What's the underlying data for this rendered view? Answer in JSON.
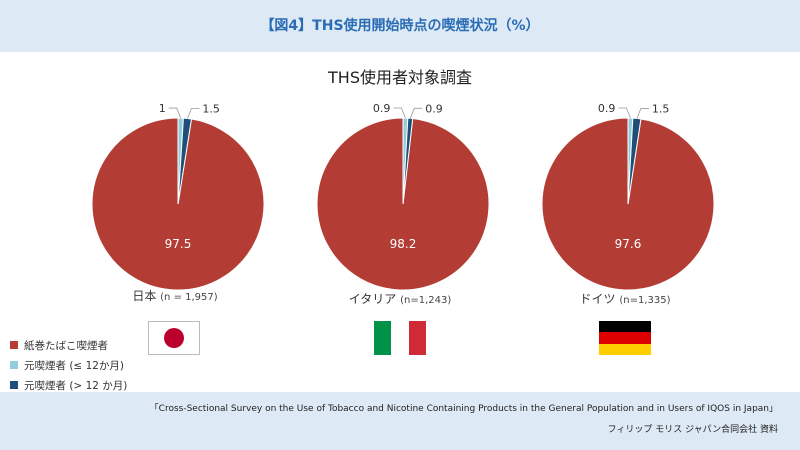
{
  "header": {
    "title": "【図4】THS使用開始時点の喫煙状況（%）"
  },
  "colors": {
    "header_bg": "#dde9f5",
    "title": "#2a6db5",
    "cigarette": "#b33d35",
    "former_short": "#92cddc",
    "former_long": "#1f4e79"
  },
  "legend": [
    {
      "label": "紙巻たばこ喫煙者",
      "color": "#b33d35"
    },
    {
      "label": "元喫煙者 (≤ 12か月)",
      "color": "#92cddc"
    },
    {
      "label": "元喫煙者 (> 12 か月)",
      "color": "#1f4e79"
    }
  ],
  "chart_data": {
    "type": "pie",
    "title": "THS使用者対象調査",
    "series_names": [
      "紙巻たばこ喫煙者",
      "元喫煙者 (≤ 12か月)",
      "元喫煙者 (> 12 か月)"
    ],
    "pies": [
      {
        "country": "日本",
        "n": "(n = 1,957)",
        "values": [
          97.5,
          1,
          1.5
        ],
        "labels": [
          "97.5",
          "1",
          "1.5"
        ]
      },
      {
        "country": "イタリア",
        "n": "(n=1,243)",
        "values": [
          98.2,
          0.9,
          0.9
        ],
        "labels": [
          "98.2",
          "0.9",
          "0.9"
        ]
      },
      {
        "country": "ドイツ",
        "n": "(n=1,335)",
        "values": [
          97.6,
          0.9,
          1.5
        ],
        "labels": [
          "97.6",
          "0.9",
          "1.5"
        ]
      }
    ]
  },
  "flags": {
    "italy": [
      "#009246",
      "#ffffff",
      "#ce2b37"
    ],
    "germany": [
      "#000000",
      "#dd0000",
      "#ffce00"
    ]
  },
  "footer": {
    "source": "「Cross-Sectional Survey on the Use of Tobacco and Nicotine Containing Products in the General Population and in Users of IQOS in Japan」",
    "credit": "フィリップ モリス ジャパン合同会社 資料"
  }
}
